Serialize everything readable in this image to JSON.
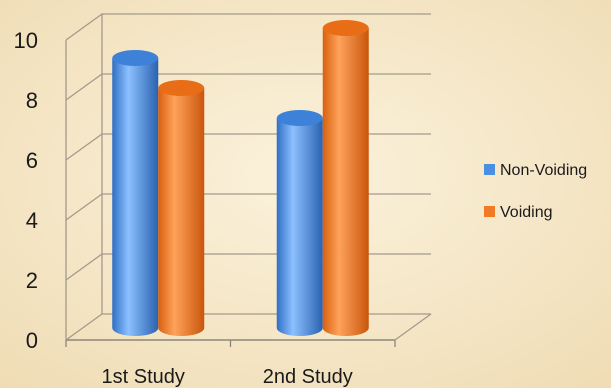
{
  "chart_data": {
    "type": "bar",
    "categories": [
      "1st Study",
      "2nd Study"
    ],
    "series": [
      {
        "name": "Non-Voiding",
        "values": [
          9,
          7
        ],
        "color": "#4a8fe0"
      },
      {
        "name": "Voiding",
        "values": [
          8,
          10
        ],
        "color": "#f07b24"
      }
    ],
    "ylim": [
      0,
      10
    ],
    "yticks": [
      0,
      2,
      4,
      6,
      8,
      10
    ],
    "grid": true,
    "legend": "right",
    "style": "3d-cylinder"
  }
}
